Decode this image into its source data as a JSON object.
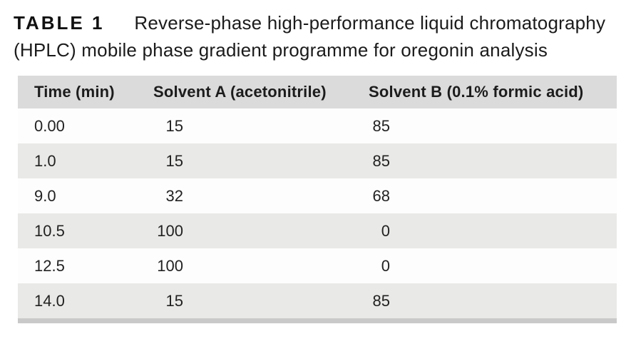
{
  "caption": {
    "label": "TABLE 1",
    "line1": "Reverse-phase high-performance liquid chromatography",
    "line2": "(HPLC) mobile phase gradient programme for oregonin analysis"
  },
  "table": {
    "columns": [
      "Time (min)",
      "Solvent A (acetonitrile)",
      "Solvent B (0.1% formic acid)"
    ],
    "rows": [
      {
        "time": "0.00",
        "solvent_a": "15",
        "solvent_b": "85"
      },
      {
        "time": "1.0",
        "solvent_a": "15",
        "solvent_b": "85"
      },
      {
        "time": "9.0",
        "solvent_a": "32",
        "solvent_b": "68"
      },
      {
        "time": "10.5",
        "solvent_a": "100",
        "solvent_b": "0"
      },
      {
        "time": "12.5",
        "solvent_a": "100",
        "solvent_b": "0"
      },
      {
        "time": "14.0",
        "solvent_a": "15",
        "solvent_b": "85"
      }
    ]
  },
  "colors": {
    "header_bg": "#dbdbdb",
    "stripe_bg": "#e9e9e7",
    "row_bg": "#fdfdfd",
    "bottom_rule": "#c9c9c9",
    "text": "#1e1e1e"
  },
  "chart_data": {
    "type": "table",
    "title": "TABLE 1 Reverse-phase high-performance liquid chromatography (HPLC) mobile phase gradient programme for oregonin analysis",
    "categories": [
      "Time (min)",
      "Solvent A (acetonitrile)",
      "Solvent B (0.1% formic acid)"
    ],
    "series": [
      {
        "name": "Time (min)",
        "values": [
          0.0,
          1.0,
          9.0,
          10.5,
          12.5,
          14.0
        ]
      },
      {
        "name": "Solvent A (acetonitrile)",
        "values": [
          15,
          15,
          32,
          100,
          100,
          15
        ]
      },
      {
        "name": "Solvent B (0.1% formic acid)",
        "values": [
          85,
          85,
          68,
          0,
          0,
          85
        ]
      }
    ]
  }
}
